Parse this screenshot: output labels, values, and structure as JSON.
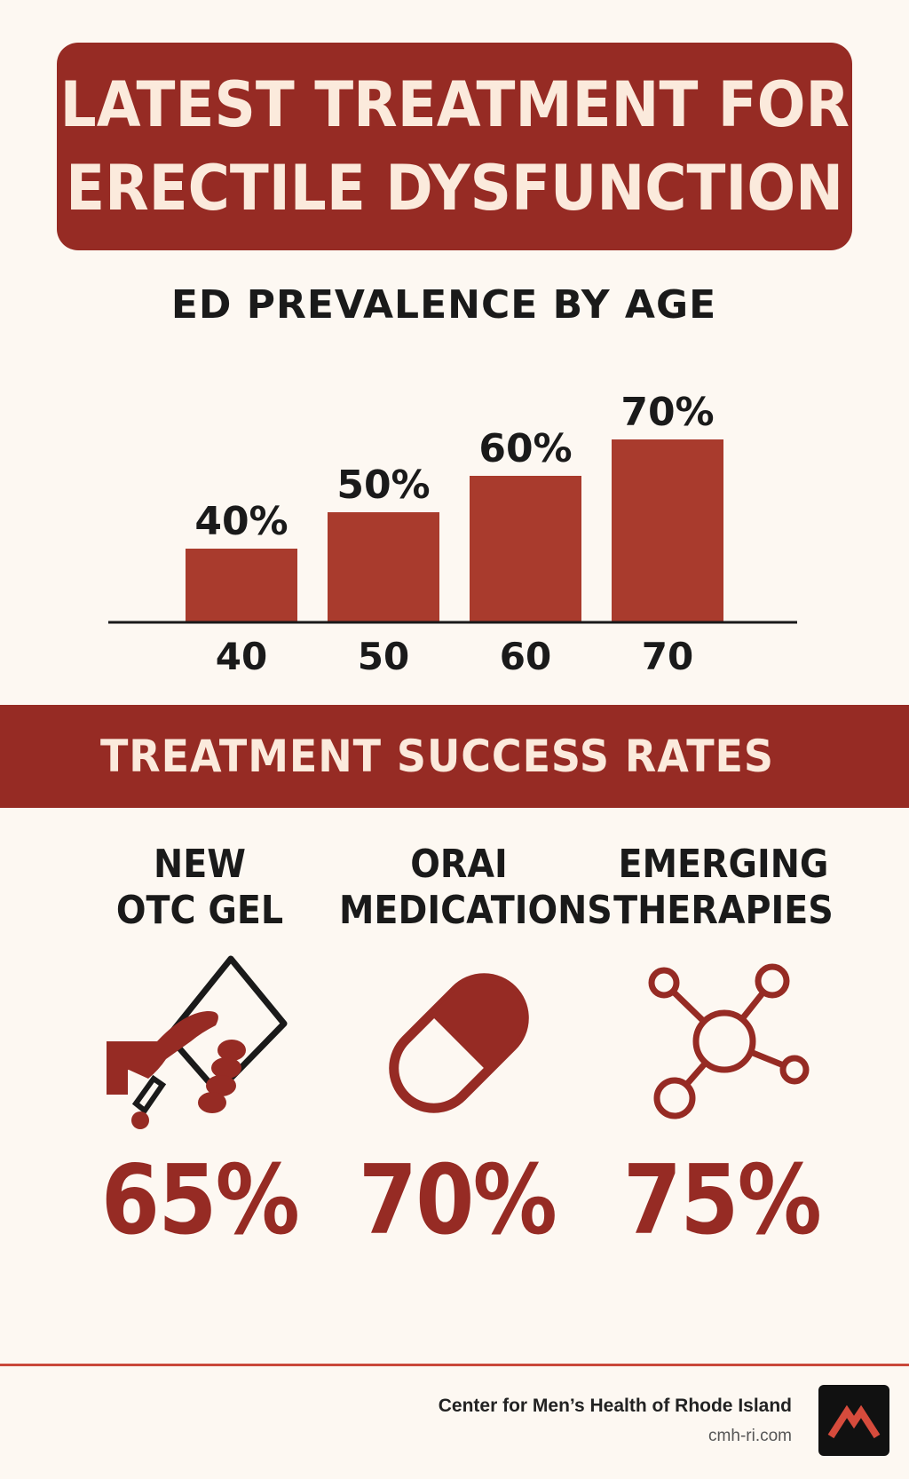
{
  "title": {
    "line1": "LATEST TREATMENT FOR",
    "line2": "ERECTILE DYSFUNCTION"
  },
  "chart_data": {
    "type": "bar",
    "title": "ED PREVALENCE BY AGE",
    "categories": [
      "40",
      "50",
      "60",
      "70"
    ],
    "values": [
      40,
      50,
      60,
      70
    ],
    "data_labels": [
      "40%",
      "50%",
      "60%",
      "70%"
    ],
    "xlabel": "",
    "ylabel": "",
    "ylim": [
      0,
      100
    ],
    "grid": false,
    "color": "#a93b2d"
  },
  "success": {
    "heading": "TREATMENT SUCCESS RATES",
    "items": [
      {
        "line1": "NEW",
        "line2": "OTC GEL",
        "rate": "65%",
        "icon": "gel-tube-hand-icon"
      },
      {
        "line1": "ORAI",
        "line2": "MEDICATIONS",
        "rate": "70%",
        "icon": "pill-capsule-icon"
      },
      {
        "line1": "EMERGING",
        "line2": "THERAPIES",
        "rate": "75%",
        "icon": "molecule-network-icon"
      }
    ]
  },
  "footer": {
    "org": "Center for Men’s Health of Rhode Island",
    "url": "cmh-ri.com",
    "logo_icon": "mountain-logo-icon"
  },
  "colors": {
    "primary": "#962b24",
    "accent": "#c9483a",
    "background": "#fdf8f2",
    "banner_text": "#fbeadc"
  }
}
